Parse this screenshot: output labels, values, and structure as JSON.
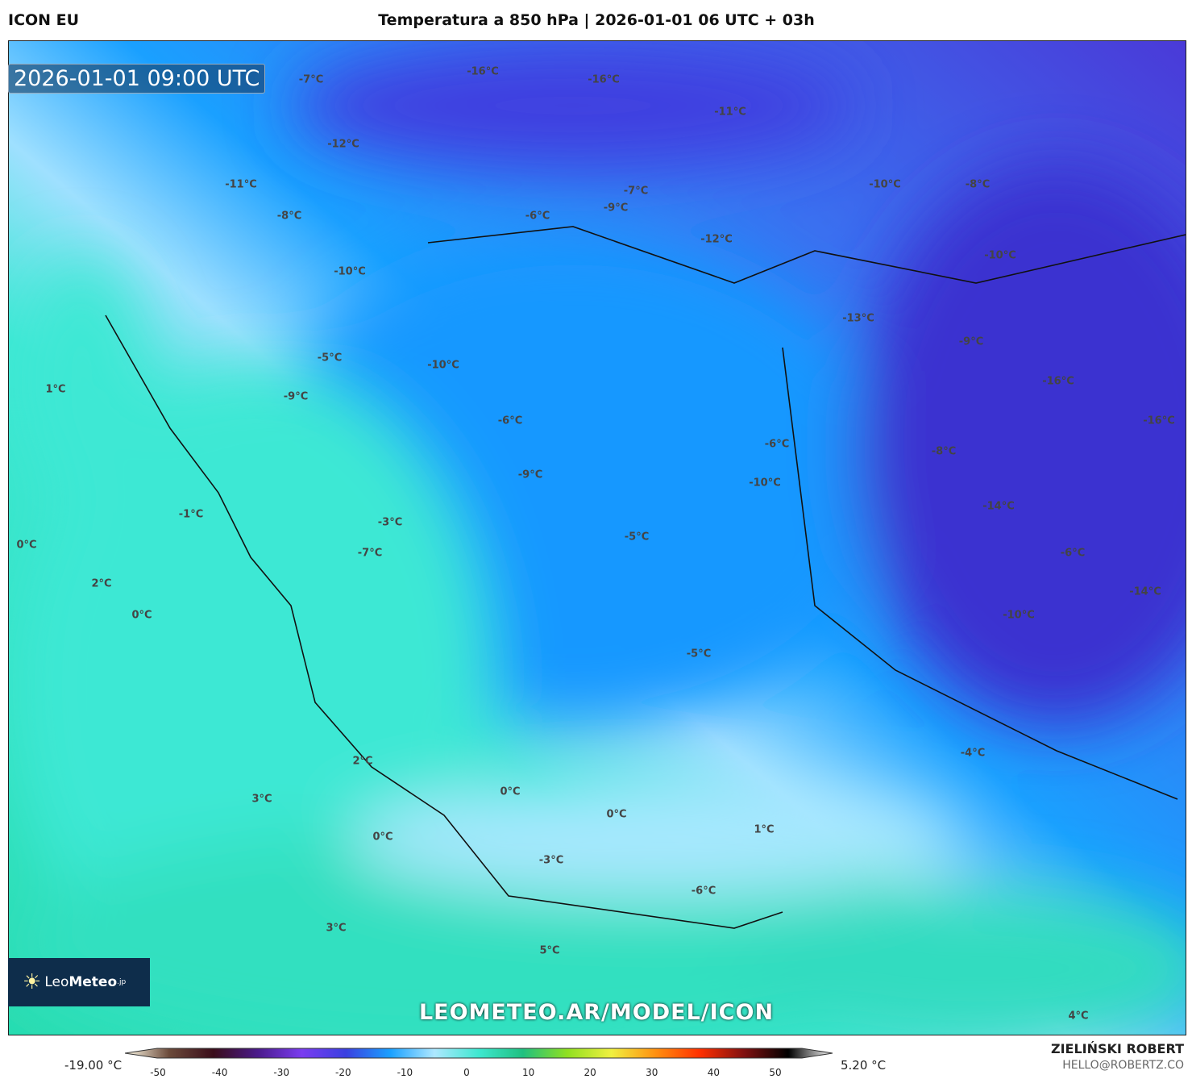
{
  "header": {
    "model": "ICON EU",
    "title": "Temperatura a 850 hPa | 2026-01-01 06 UTC + 03h"
  },
  "map": {
    "valid_time": "2026-01-01 09:00 UTC",
    "url": "LEOMETEO.AR/MODEL/ICON",
    "logo": {
      "part1": "Leo",
      "part2": "Meteo",
      "suffix": ".jp"
    },
    "labels": [
      "-16°C",
      "-16°C",
      "-7°C",
      "-11°C",
      "-12°C",
      "-11°C",
      "-10°C",
      "-8°C",
      "-7°C",
      "-9°C",
      "-6°C",
      "-8°C",
      "-12°C",
      "-10°C",
      "-10°C",
      "-13°C",
      "-9°C",
      "-5°C",
      "-10°C",
      "-16°C",
      "1°C",
      "-9°C",
      "-6°C",
      "-16°C",
      "-6°C",
      "-8°C",
      "-9°C",
      "-10°C",
      "-14°C",
      "-1°C",
      "-3°C",
      "-5°C",
      "0°C",
      "-7°C",
      "-6°C",
      "2°C",
      "-14°C",
      "0°C",
      "-10°C",
      "-5°C",
      "-4°C",
      "2°C",
      "0°C",
      "3°C",
      "0°C",
      "1°C",
      "0°C",
      "-3°C",
      "-6°C",
      "3°C",
      "5°C",
      "4°C"
    ]
  },
  "colorbar": {
    "min_label": "-19.00 °C",
    "max_label": "5.20 °C",
    "ticks": [
      "-50",
      "-40",
      "-30",
      "-20",
      "-10",
      "0",
      "10",
      "20",
      "30",
      "40",
      "50"
    ],
    "colors": [
      "#fffbe8",
      "#6b4a3a",
      "#3a0d1a",
      "#4a1a8a",
      "#7a3cf0",
      "#3a40e0",
      "#1aa0ff",
      "#aee8ff",
      "#3ee8d0",
      "#20c080",
      "#90e020",
      "#f0f040",
      "#ff9010",
      "#ff3000",
      "#801010",
      "#000000",
      "#ffffff"
    ]
  },
  "author": {
    "name": "ZIELIŃSKI ROBERT",
    "email": "HELLO@ROBERTZ.CO"
  }
}
